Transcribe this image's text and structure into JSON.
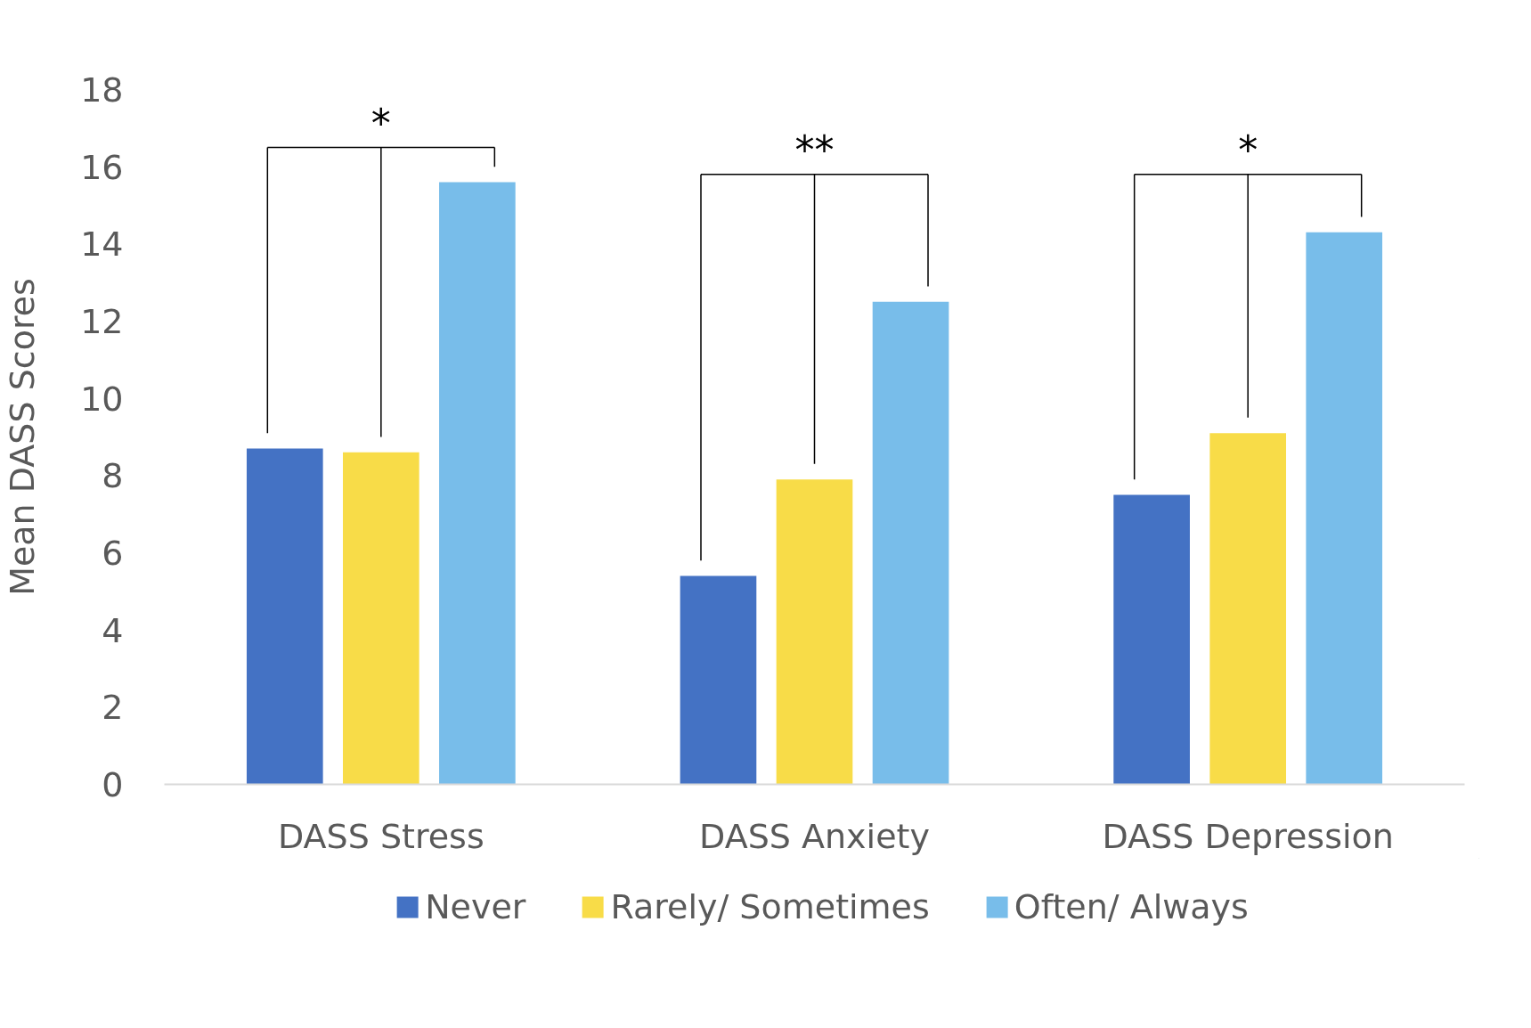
{
  "chart_data": {
    "type": "bar",
    "ylabel": "Mean DASS Scores",
    "categories": [
      "DASS Stress",
      "DASS Anxiety",
      "DASS Depression"
    ],
    "series": [
      {
        "name": "Never",
        "color": "#4472c4",
        "values": [
          8.7,
          5.4,
          7.5
        ]
      },
      {
        "name": "Rarely/ Sometimes",
        "color": "#f8dc48",
        "values": [
          8.6,
          7.9,
          9.1
        ]
      },
      {
        "name": "Often/ Always",
        "color": "#78bdea",
        "values": [
          15.6,
          12.5,
          14.3
        ]
      }
    ],
    "ylim": [
      0,
      18
    ],
    "yticks": [
      0,
      2,
      4,
      6,
      8,
      10,
      12,
      14,
      16,
      18
    ],
    "grid": false,
    "legend": "bottom",
    "annotations": [
      "*",
      "**",
      "*"
    ]
  }
}
